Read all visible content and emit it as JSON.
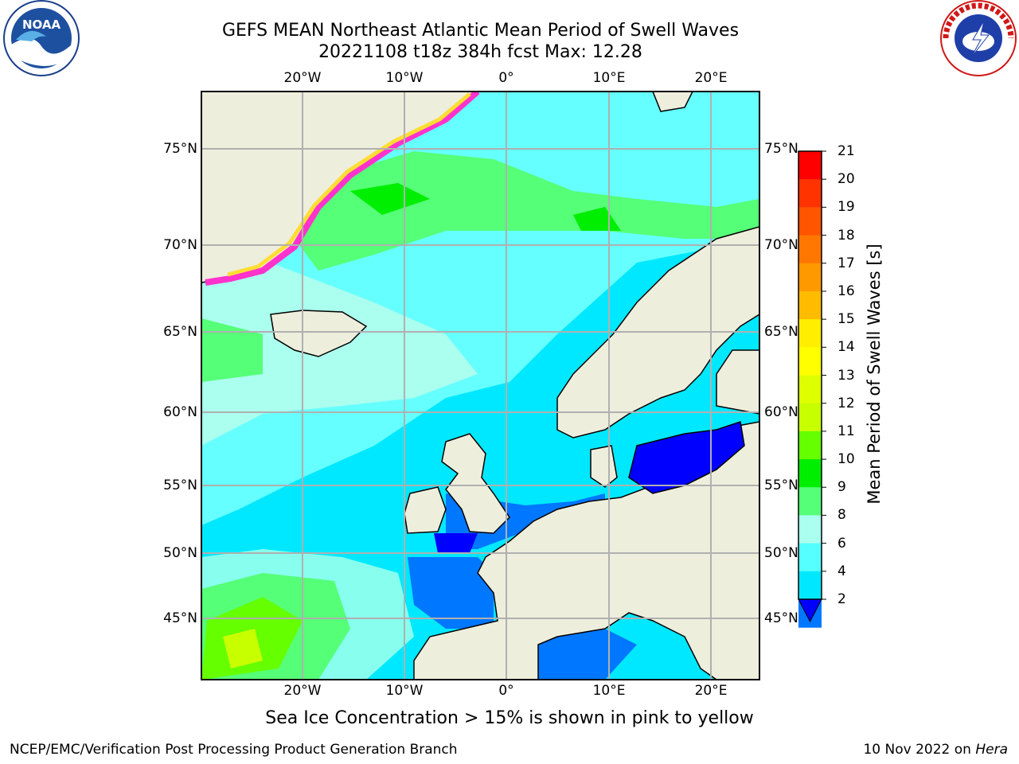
{
  "title_line1": "GEFS MEAN Northeast Atlantic Mean Period of Swell Waves",
  "title_line2": "20221108 t18z 384h fcst   Max: 12.28",
  "map": {
    "lon_labels": [
      "20°W",
      "10°W",
      "0°",
      "10°E",
      "20°E"
    ],
    "lat_labels": [
      "75°N",
      "70°N",
      "65°N",
      "60°N",
      "55°N",
      "50°N",
      "45°N"
    ],
    "land_color": "#eeeedd",
    "grid_color": "#b0b0b0"
  },
  "colorbar": {
    "label": "Mean Period of Swell Waves [s]",
    "ticks": [
      "21",
      "20",
      "19",
      "18",
      "17",
      "16",
      "15",
      "14",
      "13",
      "12",
      "11",
      "10",
      "9",
      "8",
      "6",
      "4",
      "2"
    ],
    "colors_top_to_bottom": [
      "#ff0000",
      "#ff3300",
      "#ff5500",
      "#ff7700",
      "#ff9900",
      "#ffbb00",
      "#ffee00",
      "#ffff00",
      "#ddff00",
      "#c8ff00",
      "#66ff00",
      "#00ee00",
      "#55ff77",
      "#aaffee",
      "#55ffff",
      "#00e8ff",
      "#0077ff"
    ],
    "under_color": "#0000ff"
  },
  "ice_note": "Sea Ice Concentration > 15% is shown in pink to yellow",
  "credit": "NCEP/EMC/Verification Post Processing Product Generation Branch",
  "date_text": "10 Nov 2022 on ",
  "host": "Hera",
  "logos": {
    "left": "NOAA",
    "right": "NATIONAL WEATHER SERVICE"
  }
}
